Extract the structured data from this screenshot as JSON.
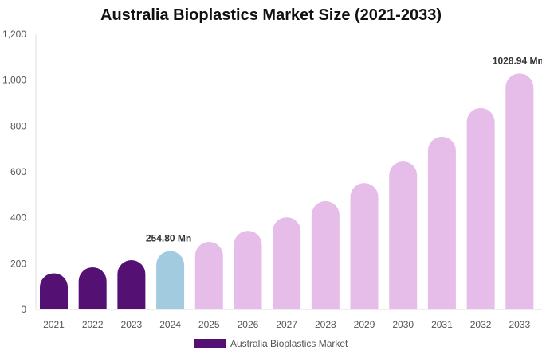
{
  "chart_data": {
    "type": "bar",
    "title": "Australia Bioplastics Market Size (2021-2033)",
    "categories": [
      "2021",
      "2022",
      "2023",
      "2024",
      "2025",
      "2026",
      "2027",
      "2028",
      "2029",
      "2030",
      "2031",
      "2032",
      "2033"
    ],
    "series": [
      {
        "name": "Australia Bioplastics Market",
        "values": [
          158,
          184,
          215,
          254.8,
          295,
          343,
          402,
          472,
          551,
          645,
          753,
          878,
          1028.94
        ]
      }
    ],
    "data_labels": {
      "2024": "254.80 Mn",
      "2033": "1028.94 Mn"
    },
    "ylim": [
      0,
      1200
    ],
    "yticks": [
      0,
      200,
      400,
      600,
      800,
      1000,
      1200
    ],
    "ytick_labels": [
      "0",
      "200",
      "400",
      "600",
      "800",
      "1,000",
      "1,200"
    ],
    "grid": false,
    "legend": "bottom",
    "colors": {
      "historical": "#541173",
      "base_year": "#a3cbdf",
      "forecast": "#e6bde8"
    }
  }
}
